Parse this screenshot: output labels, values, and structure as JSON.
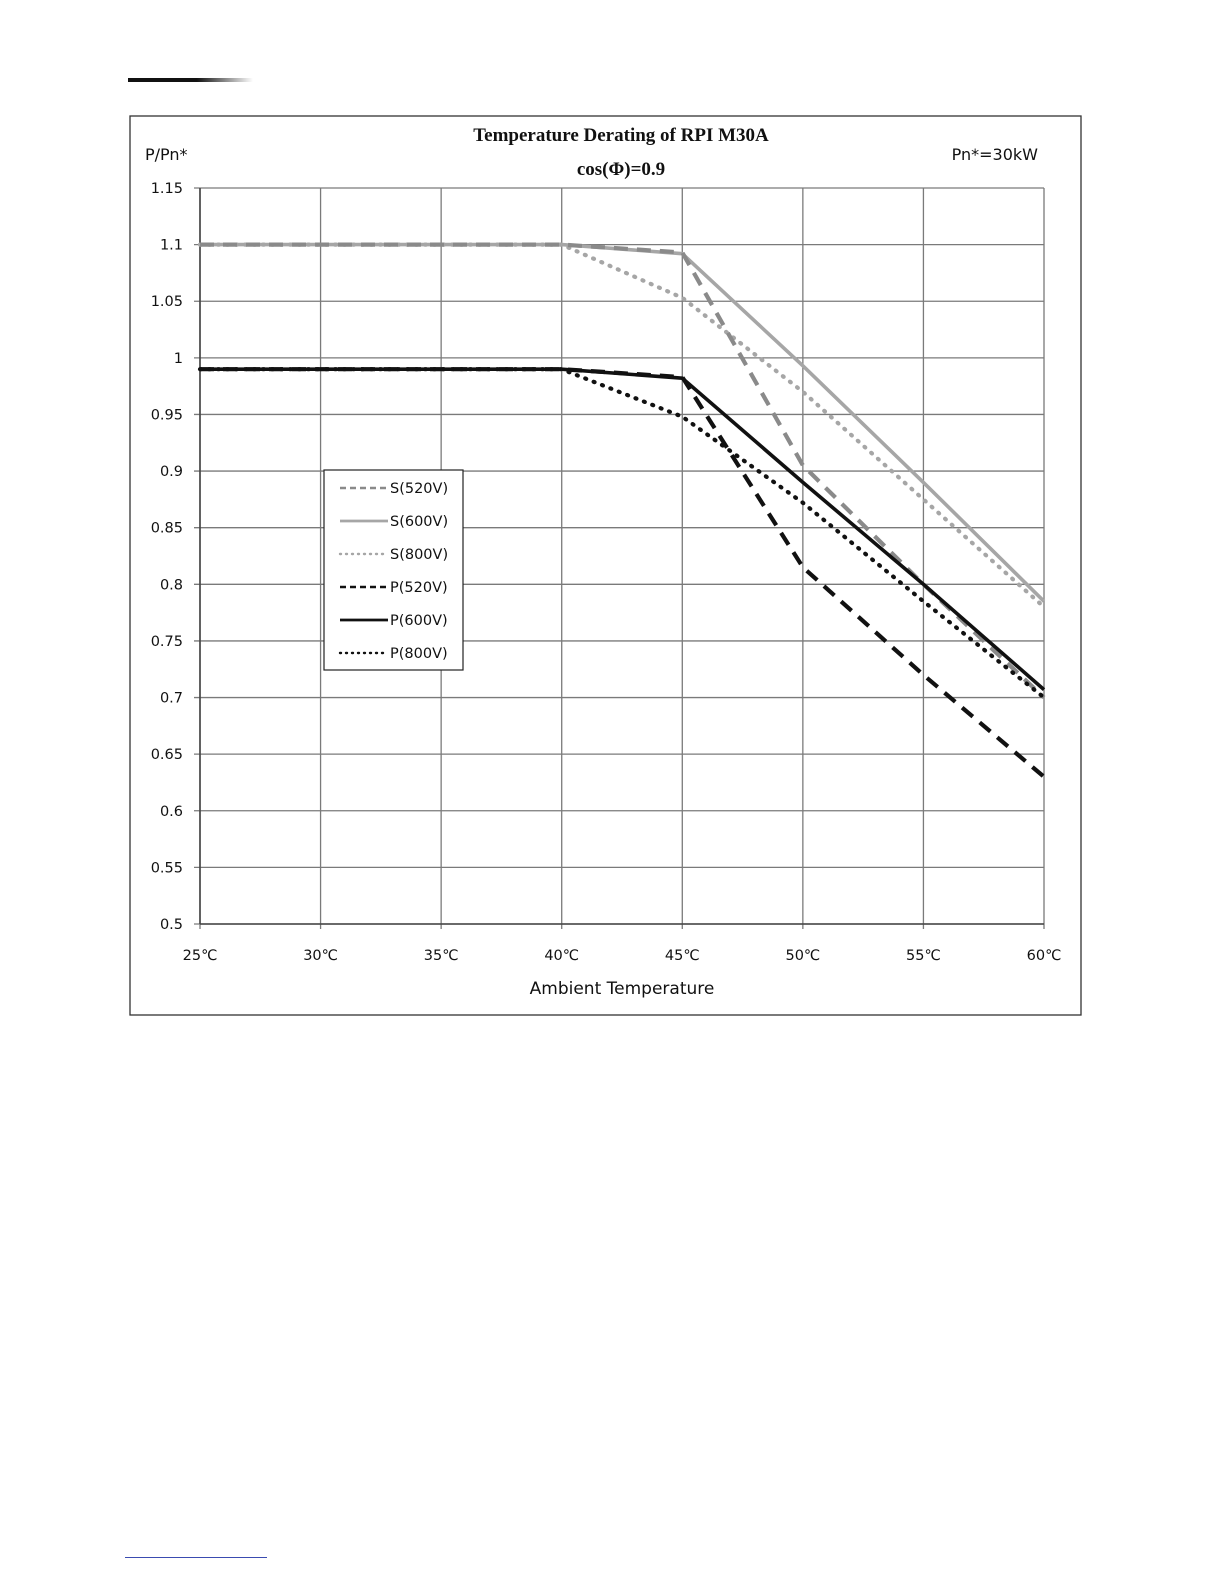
{
  "chart_data": {
    "type": "line",
    "title": "Temperature Derating of RPI M30A",
    "subtitle": "cos(Φ)=0.9",
    "annotation": "Pn*=30kW",
    "xlabel": "Ambient Temperature",
    "ylabel": "P/Pn*",
    "x": [
      25,
      30,
      35,
      40,
      45,
      50,
      55,
      60
    ],
    "x_tick_labels": [
      "25℃",
      "30℃",
      "35℃",
      "40℃",
      "45℃",
      "50℃",
      "55℃",
      "60℃"
    ],
    "xlim": [
      25,
      60
    ],
    "ylim": [
      0.5,
      1.15
    ],
    "y_ticks": [
      0.5,
      0.55,
      0.6,
      0.65,
      0.7,
      0.75,
      0.8,
      0.85,
      0.9,
      0.95,
      1,
      1.05,
      1.1,
      1.15
    ],
    "y_tick_labels": [
      "0.5",
      "0.55",
      "0.6",
      "0.65",
      "0.7",
      "0.75",
      "0.8",
      "0.85",
      "0.9",
      "0.95",
      "1",
      "1.05",
      "1.1",
      "1.15"
    ],
    "grid": true,
    "legend_position": "left-center",
    "series": [
      {
        "name": "S(520V)",
        "color": "#8a8a8a",
        "style": "dashed",
        "points": [
          [
            25,
            1.1
          ],
          [
            40,
            1.1
          ],
          [
            45,
            1.093
          ],
          [
            50,
            0.905
          ],
          [
            55,
            0.8
          ],
          [
            60,
            0.7
          ]
        ]
      },
      {
        "name": "S(600V)",
        "color": "#a6a6a6",
        "style": "solid",
        "points": [
          [
            25,
            1.1
          ],
          [
            40,
            1.1
          ],
          [
            45,
            1.092
          ],
          [
            50,
            0.993
          ],
          [
            55,
            0.89
          ],
          [
            60,
            0.785
          ]
        ]
      },
      {
        "name": "S(800V)",
        "color": "#a6a6a6",
        "style": "dotted",
        "points": [
          [
            25,
            1.1
          ],
          [
            40,
            1.1
          ],
          [
            45,
            1.053
          ],
          [
            50,
            0.97
          ],
          [
            55,
            0.875
          ],
          [
            60,
            0.78
          ]
        ]
      },
      {
        "name": "P(520V)",
        "color": "#111111",
        "style": "dashed",
        "points": [
          [
            25,
            0.99
          ],
          [
            40,
            0.99
          ],
          [
            45,
            0.983
          ],
          [
            50,
            0.815
          ],
          [
            55,
            0.72
          ],
          [
            60,
            0.63
          ]
        ]
      },
      {
        "name": "P(600V)",
        "color": "#111111",
        "style": "solid",
        "points": [
          [
            25,
            0.99
          ],
          [
            40,
            0.99
          ],
          [
            45,
            0.982
          ],
          [
            50,
            0.89
          ],
          [
            55,
            0.8
          ],
          [
            60,
            0.707
          ]
        ]
      },
      {
        "name": "P(800V)",
        "color": "#111111",
        "style": "dotted",
        "points": [
          [
            25,
            0.99
          ],
          [
            40,
            0.99
          ],
          [
            45,
            0.948
          ],
          [
            50,
            0.872
          ],
          [
            55,
            0.785
          ],
          [
            60,
            0.7
          ]
        ]
      }
    ]
  }
}
